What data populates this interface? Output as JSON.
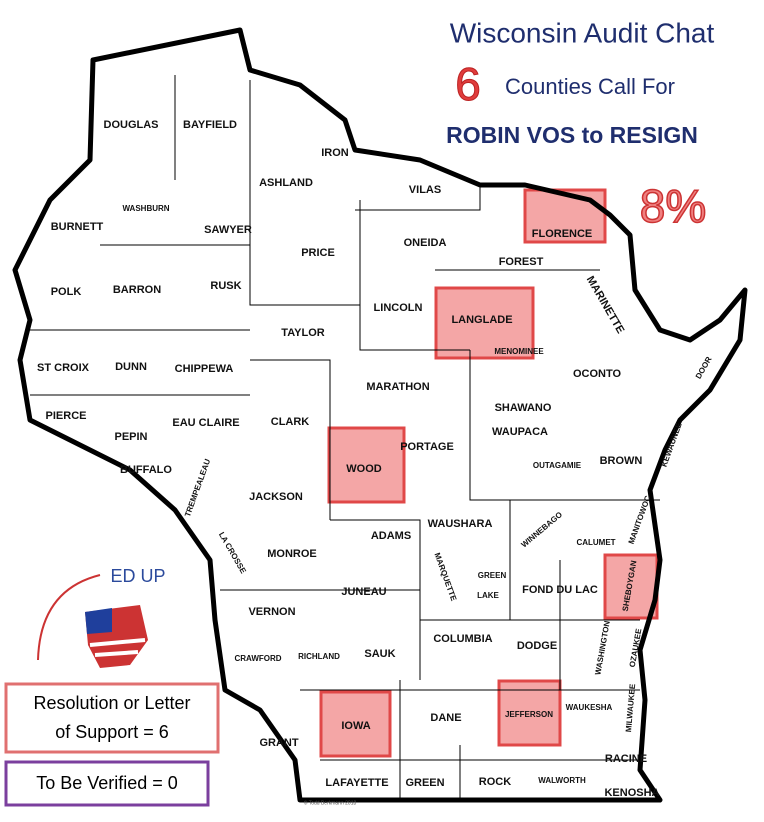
{
  "title": "Wisconsin Audit Chat",
  "count": "6",
  "subtitle": "Counties Call For",
  "headline": "ROBIN VOS to RESIGN",
  "percent": "8%",
  "logo": "ED UP",
  "legend": [
    "Resolution or Letter",
    "of Support = 6",
    "To Be Verified = 0"
  ],
  "credit": "© Todd Berkmann 2018",
  "counties": [
    {
      "name": "DOUGLAS",
      "highlighted": false
    },
    {
      "name": "BAYFIELD",
      "highlighted": false
    },
    {
      "name": "IRON",
      "highlighted": false
    },
    {
      "name": "ASHLAND",
      "highlighted": false
    },
    {
      "name": "VILAS",
      "highlighted": false
    },
    {
      "name": "FLORENCE",
      "highlighted": true
    },
    {
      "name": "BURNETT",
      "highlighted": false
    },
    {
      "name": "WASHBURN",
      "highlighted": false
    },
    {
      "name": "SAWYER",
      "highlighted": false
    },
    {
      "name": "PRICE",
      "highlighted": false
    },
    {
      "name": "ONEIDA",
      "highlighted": false
    },
    {
      "name": "FOREST",
      "highlighted": false
    },
    {
      "name": "MARINETTE",
      "highlighted": false
    },
    {
      "name": "POLK",
      "highlighted": false
    },
    {
      "name": "BARRON",
      "highlighted": false
    },
    {
      "name": "RUSK",
      "highlighted": false
    },
    {
      "name": "LINCOLN",
      "highlighted": false
    },
    {
      "name": "LANGLADE",
      "highlighted": true
    },
    {
      "name": "TAYLOR",
      "highlighted": false
    },
    {
      "name": "ST CROIX",
      "highlighted": false
    },
    {
      "name": "DUNN",
      "highlighted": false
    },
    {
      "name": "CHIPPEWA",
      "highlighted": false
    },
    {
      "name": "MENOMINEE",
      "highlighted": false
    },
    {
      "name": "OCONTO",
      "highlighted": false
    },
    {
      "name": "DOOR",
      "highlighted": false
    },
    {
      "name": "MARATHON",
      "highlighted": false
    },
    {
      "name": "SHAWANO",
      "highlighted": false
    },
    {
      "name": "PIERCE",
      "highlighted": false
    },
    {
      "name": "EAU CLAIRE",
      "highlighted": false
    },
    {
      "name": "CLARK",
      "highlighted": false
    },
    {
      "name": "PEPIN",
      "highlighted": false
    },
    {
      "name": "PORTAGE",
      "highlighted": false
    },
    {
      "name": "WAUPACA",
      "highlighted": false
    },
    {
      "name": "KEWAUNEE",
      "highlighted": false
    },
    {
      "name": "WOOD",
      "highlighted": true
    },
    {
      "name": "BUFFALO",
      "highlighted": false
    },
    {
      "name": "TREMPEALEAU",
      "highlighted": false
    },
    {
      "name": "JACKSON",
      "highlighted": false
    },
    {
      "name": "OUTAGAMIE",
      "highlighted": false
    },
    {
      "name": "BROWN",
      "highlighted": false
    },
    {
      "name": "MANITOWOC",
      "highlighted": false
    },
    {
      "name": "ADAMS",
      "highlighted": false
    },
    {
      "name": "WAUSHARA",
      "highlighted": false
    },
    {
      "name": "WINNEBAGO",
      "highlighted": false
    },
    {
      "name": "CALUMET",
      "highlighted": false
    },
    {
      "name": "LA CROSSE",
      "highlighted": false
    },
    {
      "name": "MONROE",
      "highlighted": false
    },
    {
      "name": "JUNEAU",
      "highlighted": false
    },
    {
      "name": "MARQUETTE",
      "highlighted": false
    },
    {
      "name": "GREEN",
      "highlighted": false
    },
    {
      "name": "LAKE",
      "highlighted": false
    },
    {
      "name": "FOND DU LAC",
      "highlighted": false
    },
    {
      "name": "SHEBOYGAN",
      "highlighted": true
    },
    {
      "name": "VERNON",
      "highlighted": false
    },
    {
      "name": "COLUMBIA",
      "highlighted": false
    },
    {
      "name": "DODGE",
      "highlighted": false
    },
    {
      "name": "WASHINGTON",
      "highlighted": false
    },
    {
      "name": "OZAUKEE",
      "highlighted": false
    },
    {
      "name": "CRAWFORD",
      "highlighted": false
    },
    {
      "name": "RICHLAND",
      "highlighted": false
    },
    {
      "name": "SAUK",
      "highlighted": false
    },
    {
      "name": "IOWA",
      "highlighted": true
    },
    {
      "name": "DANE",
      "highlighted": false
    },
    {
      "name": "JEFFERSON",
      "highlighted": true
    },
    {
      "name": "WAUKESHA",
      "highlighted": false
    },
    {
      "name": "MILWAUKEE",
      "highlighted": false
    },
    {
      "name": "GRANT",
      "highlighted": false
    },
    {
      "name": "RACINE",
      "highlighted": false
    },
    {
      "name": "LAFAYETTE",
      "highlighted": false
    },
    {
      "name": "GREEN",
      "highlighted": false
    },
    {
      "name": "ROCK",
      "highlighted": false
    },
    {
      "name": "WALWORTH",
      "highlighted": false
    },
    {
      "name": "KENOSHA",
      "highlighted": false
    }
  ]
}
